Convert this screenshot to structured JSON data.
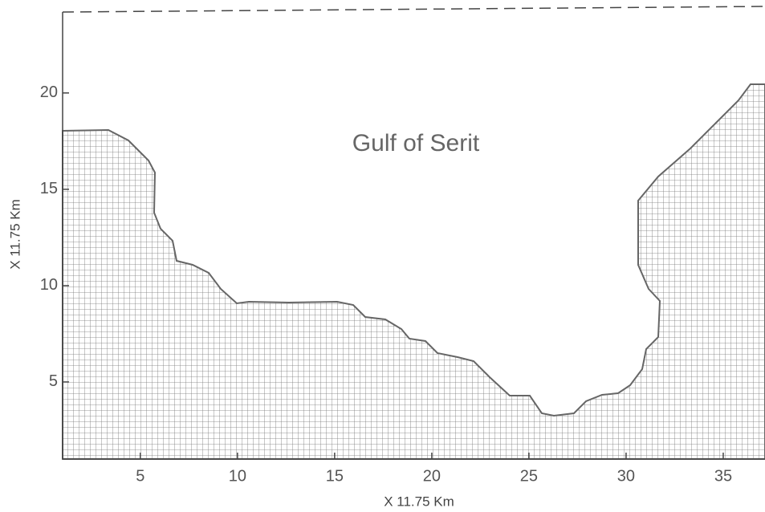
{
  "map": {
    "title": "Gulf of Serit",
    "xlabel": "X 11.75 Km",
    "ylabel": "X 11.75 Km",
    "xlim": [
      1,
      37.15
    ],
    "ylim": [
      1,
      24.2
    ],
    "xticks": [
      5,
      10,
      15,
      20,
      25,
      30,
      35
    ],
    "yticks": [
      5,
      10,
      15,
      20
    ]
  }
}
